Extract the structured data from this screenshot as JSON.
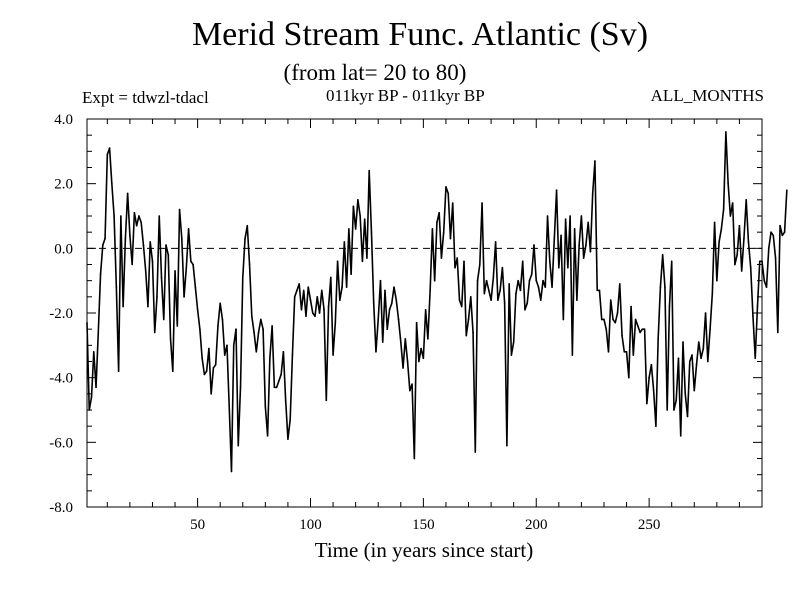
{
  "header": {
    "title": "Merid Stream Func. Atlantic (Sv)",
    "subtitle": "(from lat= 20 to 80)",
    "expt": "Expt = tdwzl-tdacl",
    "period": "011kyr BP - 011kyr BP",
    "months": "ALL_MONTHS"
  },
  "chart_data": {
    "type": "line",
    "title": "Merid Stream Func. Atlantic (Sv)",
    "subtitle": "(from lat= 20 to 80)",
    "xlabel": "Time (in years since start)",
    "ylabel": "",
    "xlim": [
      1,
      300
    ],
    "ylim": [
      -8.0,
      4.0
    ],
    "xticks": [
      50,
      100,
      150,
      200,
      250
    ],
    "yticks": [
      -8.0,
      -6.0,
      -4.0,
      -2.0,
      0.0,
      2.0,
      4.0
    ],
    "ytick_labels": [
      "-8.0",
      "-6.0",
      "-4.0",
      "-2.0",
      "0.0",
      "2.0",
      "4.0"
    ],
    "zero_line": "dashed",
    "grid": false,
    "series": [
      {
        "x_start": 1,
        "x_step": 1,
        "values": [
          -2.3,
          -5.0,
          -4.6,
          -3.2,
          -4.3,
          -2.6,
          -0.8,
          0.1,
          0.3,
          2.9,
          3.1,
          2.0,
          1.0,
          -1.2,
          -3.8,
          1.0,
          -1.8,
          0.3,
          1.7,
          0.4,
          -0.5,
          1.1,
          0.7,
          1.0,
          0.8,
          0.1,
          -0.7,
          -1.8,
          0.2,
          -0.4,
          -2.6,
          -1.5,
          1.0,
          -0.9,
          -2.2,
          0.1,
          -0.2,
          -2.8,
          -3.8,
          -0.7,
          -2.4,
          1.2,
          0.3,
          -1.5,
          -0.6,
          0.6,
          -0.4,
          -0.5,
          -1.2,
          -1.9,
          -2.5,
          -3.4,
          -3.9,
          -3.8,
          -3.1,
          -4.5,
          -3.7,
          -3.6,
          -2.4,
          -1.7,
          -2.2,
          -3.3,
          -3.0,
          -4.9,
          -6.9,
          -3.0,
          -2.5,
          -6.1,
          -4.3,
          -0.9,
          0.3,
          0.7,
          -0.5,
          -2.1,
          -2.6,
          -3.2,
          -2.6,
          -2.2,
          -2.5,
          -4.9,
          -5.8,
          -3.4,
          -2.4,
          -4.3,
          -4.3,
          -4.1,
          -3.9,
          -3.2,
          -4.7,
          -5.9,
          -5.3,
          -3.3,
          -1.5,
          -1.3,
          -1.1,
          -1.9,
          -1.3,
          -2.1,
          -1.2,
          -1.6,
          -2.0,
          -2.1,
          -1.5,
          -2.0,
          -1.3,
          -1.9,
          -4.7,
          -1.8,
          -0.9,
          -3.3,
          -2.3,
          -0.4,
          -1.6,
          -1.2,
          0.2,
          -1.2,
          0.6,
          -0.8,
          1.3,
          0.6,
          1.5,
          1.0,
          -0.4,
          0.9,
          -0.3,
          2.4,
          0.5,
          -1.7,
          -3.2,
          -2.2,
          -1.0,
          -2.9,
          -1.3,
          -2.5,
          -1.9,
          -1.7,
          -1.2,
          -1.6,
          -2.2,
          -2.9,
          -3.7,
          -2.8,
          -3.5,
          -4.4,
          -4.2,
          -6.5,
          -2.3,
          -3.5,
          -3.1,
          -3.4,
          -1.9,
          -2.8,
          -1.3,
          0.6,
          -1.0,
          0.8,
          1.1,
          -0.3,
          0.5,
          1.9,
          1.7,
          0.3,
          1.4,
          -0.6,
          -0.3,
          -1.6,
          -1.8,
          -0.4,
          -2.7,
          -2.2,
          -1.5,
          -2.6,
          -6.3,
          -1.0,
          -0.5,
          1.4,
          -1.4,
          -1.0,
          -1.3,
          -1.6,
          -0.9,
          0.2,
          -1.6,
          -1.3,
          -0.6,
          -1.7,
          -6.1,
          -1.1,
          -3.3,
          -2.9,
          -1.4,
          -1.0,
          -1.3,
          -0.4,
          -1.9,
          -1.7,
          -1.0,
          -0.8,
          0.1,
          -1.0,
          -1.2,
          -1.6,
          -1.0,
          -1.2,
          1.0,
          -0.4,
          -1.2,
          0.3,
          1.8,
          -0.6,
          0.4,
          -2.2,
          0.9,
          -0.6,
          1.0,
          -3.3,
          0.6,
          -1.6,
          0.1,
          1.0,
          -0.3,
          0.1,
          0.8,
          -0.1,
          1.7,
          2.7,
          -1.3,
          -1.3,
          -2.2,
          -2.2,
          -2.5,
          -3.2,
          -1.6,
          -2.2,
          -2.3,
          -2.0,
          -1.1,
          -2.7,
          -3.2,
          -3.2,
          -4.0,
          -1.8,
          -3.3,
          -2.2,
          -2.4,
          -2.6,
          -2.5,
          -2.5,
          -4.8,
          -4.0,
          -3.6,
          -4.4,
          -5.5,
          -2.8,
          -1.2,
          -0.2,
          -1.2,
          -5.0,
          -1.8,
          -0.4,
          -5.0,
          -4.7,
          -3.4,
          -5.8,
          -2.9,
          -4.5,
          -5.2,
          -3.5,
          -3.3,
          -4.4,
          -3.6,
          -2.9,
          -3.4,
          -3.1,
          -2.0,
          -3.5,
          -2.5,
          -1.4,
          0.8,
          -1.0,
          0.2,
          0.6,
          1.2,
          3.6,
          2.0,
          1.0,
          1.4,
          -0.5,
          -0.2,
          0.7,
          -0.7,
          0.3,
          1.5,
          0.2,
          -0.6,
          -2.1,
          -3.4,
          -1.8,
          -0.4,
          -0.4,
          -1.0,
          -1.2,
          0.0,
          0.5,
          0.4,
          -0.3,
          -2.6,
          0.7,
          0.4,
          0.5,
          1.8
        ]
      }
    ]
  }
}
